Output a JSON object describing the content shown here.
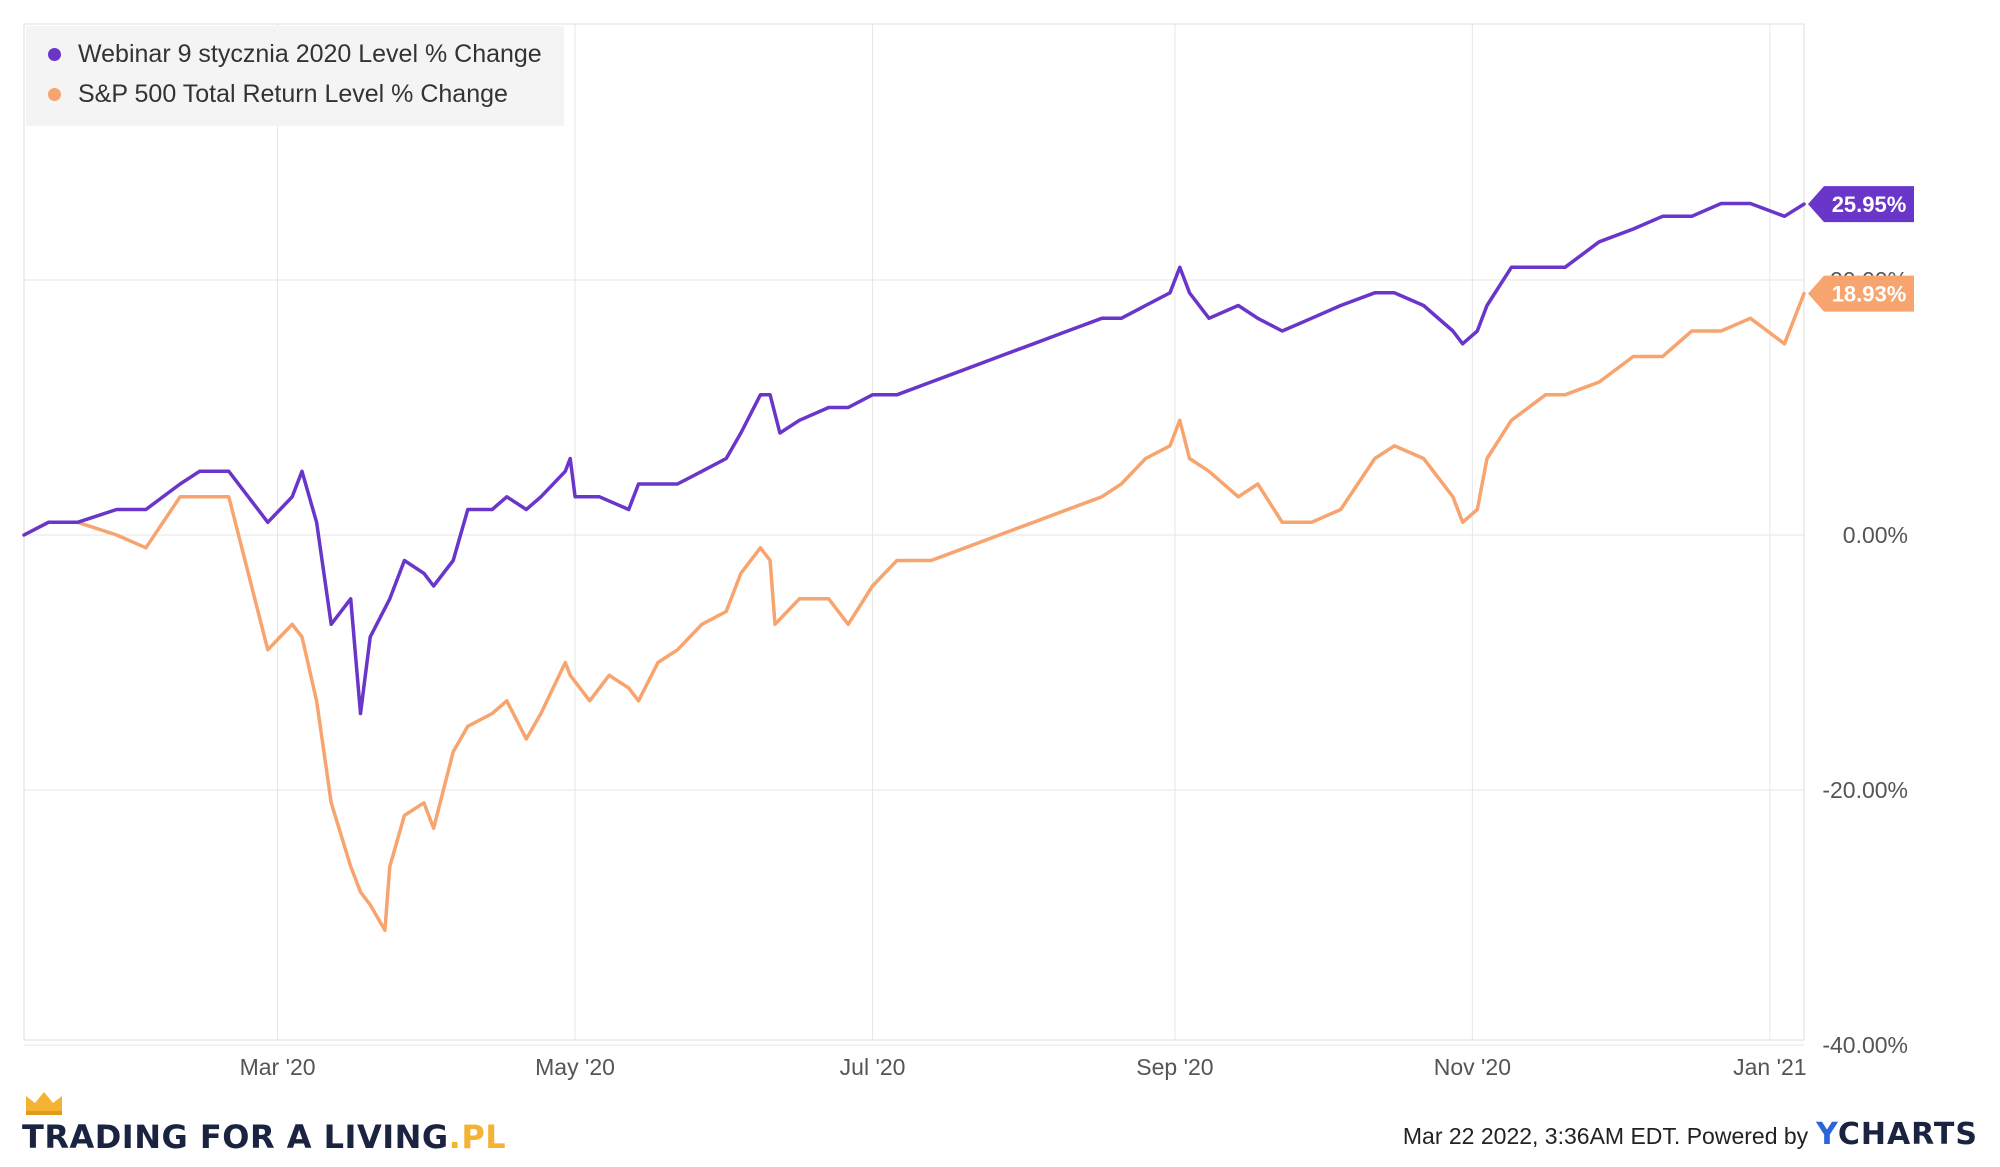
{
  "chart_data": {
    "type": "line",
    "x_range": [
      "2020-01-09",
      "2021-01-08"
    ],
    "x_ticks": [
      {
        "date": "2020-03-01",
        "label": "Mar '20"
      },
      {
        "date": "2020-05-01",
        "label": "May '20"
      },
      {
        "date": "2020-07-01",
        "label": "Jul '20"
      },
      {
        "date": "2020-09-01",
        "label": "Sep '20"
      },
      {
        "date": "2020-11-01",
        "label": "Nov '20"
      },
      {
        "date": "2021-01-01",
        "label": "Jan '21"
      }
    ],
    "y_ticks": [
      {
        "value": 20,
        "label": "20.00%"
      },
      {
        "value": 0,
        "label": "0.00%"
      },
      {
        "value": -20,
        "label": "-20.00%"
      },
      {
        "value": -40,
        "label": "-40.00%"
      }
    ],
    "ylim": [
      -40,
      40
    ],
    "y_unit": "%",
    "grid": true,
    "legend_position": "top-left",
    "series": [
      {
        "name": "Webinar 9 stycznia 2020 Level % Change",
        "color": "#6a35c9",
        "end_label": "25.95%",
        "points": [
          [
            "2020-01-09",
            0
          ],
          [
            "2020-01-14",
            1
          ],
          [
            "2020-01-20",
            1
          ],
          [
            "2020-01-28",
            2
          ],
          [
            "2020-02-03",
            2
          ],
          [
            "2020-02-10",
            4
          ],
          [
            "2020-02-14",
            5
          ],
          [
            "2020-02-20",
            5
          ],
          [
            "2020-02-24",
            3
          ],
          [
            "2020-02-28",
            1
          ],
          [
            "2020-03-04",
            3
          ],
          [
            "2020-03-06",
            5
          ],
          [
            "2020-03-09",
            1
          ],
          [
            "2020-03-12",
            -7
          ],
          [
            "2020-03-16",
            -5
          ],
          [
            "2020-03-18",
            -14
          ],
          [
            "2020-03-20",
            -8
          ],
          [
            "2020-03-24",
            -5
          ],
          [
            "2020-03-27",
            -2
          ],
          [
            "2020-03-31",
            -3
          ],
          [
            "2020-04-02",
            -4
          ],
          [
            "2020-04-06",
            -2
          ],
          [
            "2020-04-09",
            2
          ],
          [
            "2020-04-14",
            2
          ],
          [
            "2020-04-17",
            3
          ],
          [
            "2020-04-21",
            2
          ],
          [
            "2020-04-24",
            3
          ],
          [
            "2020-04-29",
            5
          ],
          [
            "2020-04-30",
            6
          ],
          [
            "2020-05-01",
            3
          ],
          [
            "2020-05-06",
            3
          ],
          [
            "2020-05-12",
            2
          ],
          [
            "2020-05-14",
            4
          ],
          [
            "2020-05-18",
            4
          ],
          [
            "2020-05-22",
            4
          ],
          [
            "2020-05-27",
            5
          ],
          [
            "2020-06-01",
            6
          ],
          [
            "2020-06-04",
            8
          ],
          [
            "2020-06-08",
            11
          ],
          [
            "2020-06-10",
            11
          ],
          [
            "2020-06-12",
            8
          ],
          [
            "2020-06-16",
            9
          ],
          [
            "2020-06-22",
            10
          ],
          [
            "2020-06-26",
            10
          ],
          [
            "2020-07-01",
            11
          ],
          [
            "2020-07-06",
            11
          ],
          [
            "2020-07-13",
            12
          ],
          [
            "2020-07-20",
            13
          ],
          [
            "2020-07-27",
            14
          ],
          [
            "2020-08-03",
            15
          ],
          [
            "2020-08-10",
            16
          ],
          [
            "2020-08-17",
            17
          ],
          [
            "2020-08-21",
            17
          ],
          [
            "2020-08-26",
            18
          ],
          [
            "2020-08-31",
            19
          ],
          [
            "2020-09-02",
            21
          ],
          [
            "2020-09-04",
            19
          ],
          [
            "2020-09-08",
            17
          ],
          [
            "2020-09-14",
            18
          ],
          [
            "2020-09-18",
            17
          ],
          [
            "2020-09-23",
            16
          ],
          [
            "2020-09-29",
            17
          ],
          [
            "2020-10-05",
            18
          ],
          [
            "2020-10-12",
            19
          ],
          [
            "2020-10-16",
            19
          ],
          [
            "2020-10-22",
            18
          ],
          [
            "2020-10-28",
            16
          ],
          [
            "2020-10-30",
            15
          ],
          [
            "2020-11-02",
            16
          ],
          [
            "2020-11-04",
            18
          ],
          [
            "2020-11-09",
            21
          ],
          [
            "2020-11-16",
            21
          ],
          [
            "2020-11-20",
            21
          ],
          [
            "2020-11-27",
            23
          ],
          [
            "2020-12-04",
            24
          ],
          [
            "2020-12-10",
            25
          ],
          [
            "2020-12-16",
            25
          ],
          [
            "2020-12-22",
            26
          ],
          [
            "2020-12-28",
            26
          ],
          [
            "2021-01-04",
            25
          ],
          [
            "2021-01-08",
            25.95
          ]
        ]
      },
      {
        "name": "S&P 500 Total Return Level % Change",
        "color": "#f7a46f",
        "end_label": "18.93%",
        "points": [
          [
            "2020-01-09",
            0
          ],
          [
            "2020-01-14",
            1
          ],
          [
            "2020-01-20",
            1
          ],
          [
            "2020-01-28",
            0
          ],
          [
            "2020-02-03",
            -1
          ],
          [
            "2020-02-10",
            3
          ],
          [
            "2020-02-14",
            3
          ],
          [
            "2020-02-20",
            3
          ],
          [
            "2020-02-24",
            -3
          ],
          [
            "2020-02-28",
            -9
          ],
          [
            "2020-03-04",
            -7
          ],
          [
            "2020-03-06",
            -8
          ],
          [
            "2020-03-09",
            -13
          ],
          [
            "2020-03-12",
            -21
          ],
          [
            "2020-03-16",
            -26
          ],
          [
            "2020-03-18",
            -28
          ],
          [
            "2020-03-20",
            -29
          ],
          [
            "2020-03-23",
            -31
          ],
          [
            "2020-03-24",
            -26
          ],
          [
            "2020-03-27",
            -22
          ],
          [
            "2020-03-31",
            -21
          ],
          [
            "2020-04-02",
            -23
          ],
          [
            "2020-04-06",
            -17
          ],
          [
            "2020-04-09",
            -15
          ],
          [
            "2020-04-14",
            -14
          ],
          [
            "2020-04-17",
            -13
          ],
          [
            "2020-04-21",
            -16
          ],
          [
            "2020-04-24",
            -14
          ],
          [
            "2020-04-29",
            -10
          ],
          [
            "2020-04-30",
            -11
          ],
          [
            "2020-05-04",
            -13
          ],
          [
            "2020-05-08",
            -11
          ],
          [
            "2020-05-12",
            -12
          ],
          [
            "2020-05-14",
            -13
          ],
          [
            "2020-05-18",
            -10
          ],
          [
            "2020-05-22",
            -9
          ],
          [
            "2020-05-27",
            -7
          ],
          [
            "2020-06-01",
            -6
          ],
          [
            "2020-06-04",
            -3
          ],
          [
            "2020-06-08",
            -1
          ],
          [
            "2020-06-10",
            -2
          ],
          [
            "2020-06-11",
            -7
          ],
          [
            "2020-06-16",
            -5
          ],
          [
            "2020-06-22",
            -5
          ],
          [
            "2020-06-26",
            -7
          ],
          [
            "2020-07-01",
            -4
          ],
          [
            "2020-07-06",
            -2
          ],
          [
            "2020-07-13",
            -2
          ],
          [
            "2020-07-20",
            -1
          ],
          [
            "2020-07-27",
            0
          ],
          [
            "2020-08-03",
            1
          ],
          [
            "2020-08-10",
            2
          ],
          [
            "2020-08-17",
            3
          ],
          [
            "2020-08-21",
            4
          ],
          [
            "2020-08-26",
            6
          ],
          [
            "2020-08-31",
            7
          ],
          [
            "2020-09-02",
            9
          ],
          [
            "2020-09-04",
            6
          ],
          [
            "2020-09-08",
            5
          ],
          [
            "2020-09-14",
            3
          ],
          [
            "2020-09-18",
            4
          ],
          [
            "2020-09-23",
            1
          ],
          [
            "2020-09-29",
            1
          ],
          [
            "2020-10-05",
            2
          ],
          [
            "2020-10-12",
            6
          ],
          [
            "2020-10-16",
            7
          ],
          [
            "2020-10-22",
            6
          ],
          [
            "2020-10-28",
            3
          ],
          [
            "2020-10-30",
            1
          ],
          [
            "2020-11-02",
            2
          ],
          [
            "2020-11-04",
            6
          ],
          [
            "2020-11-09",
            9
          ],
          [
            "2020-11-16",
            11
          ],
          [
            "2020-11-20",
            11
          ],
          [
            "2020-11-27",
            12
          ],
          [
            "2020-12-04",
            14
          ],
          [
            "2020-12-10",
            14
          ],
          [
            "2020-12-16",
            16
          ],
          [
            "2020-12-22",
            16
          ],
          [
            "2020-12-28",
            17
          ],
          [
            "2021-01-04",
            15
          ],
          [
            "2021-01-08",
            18.93
          ]
        ]
      }
    ]
  },
  "footer": {
    "brand_main": "TRADING FOR A LIVING",
    "brand_suffix": ".PL",
    "timestamp": "Mar 22 2022, 3:36AM EDT.",
    "powered_by": "Powered by",
    "ycharts_y": "Y",
    "ycharts_rest": "CHARTS"
  }
}
